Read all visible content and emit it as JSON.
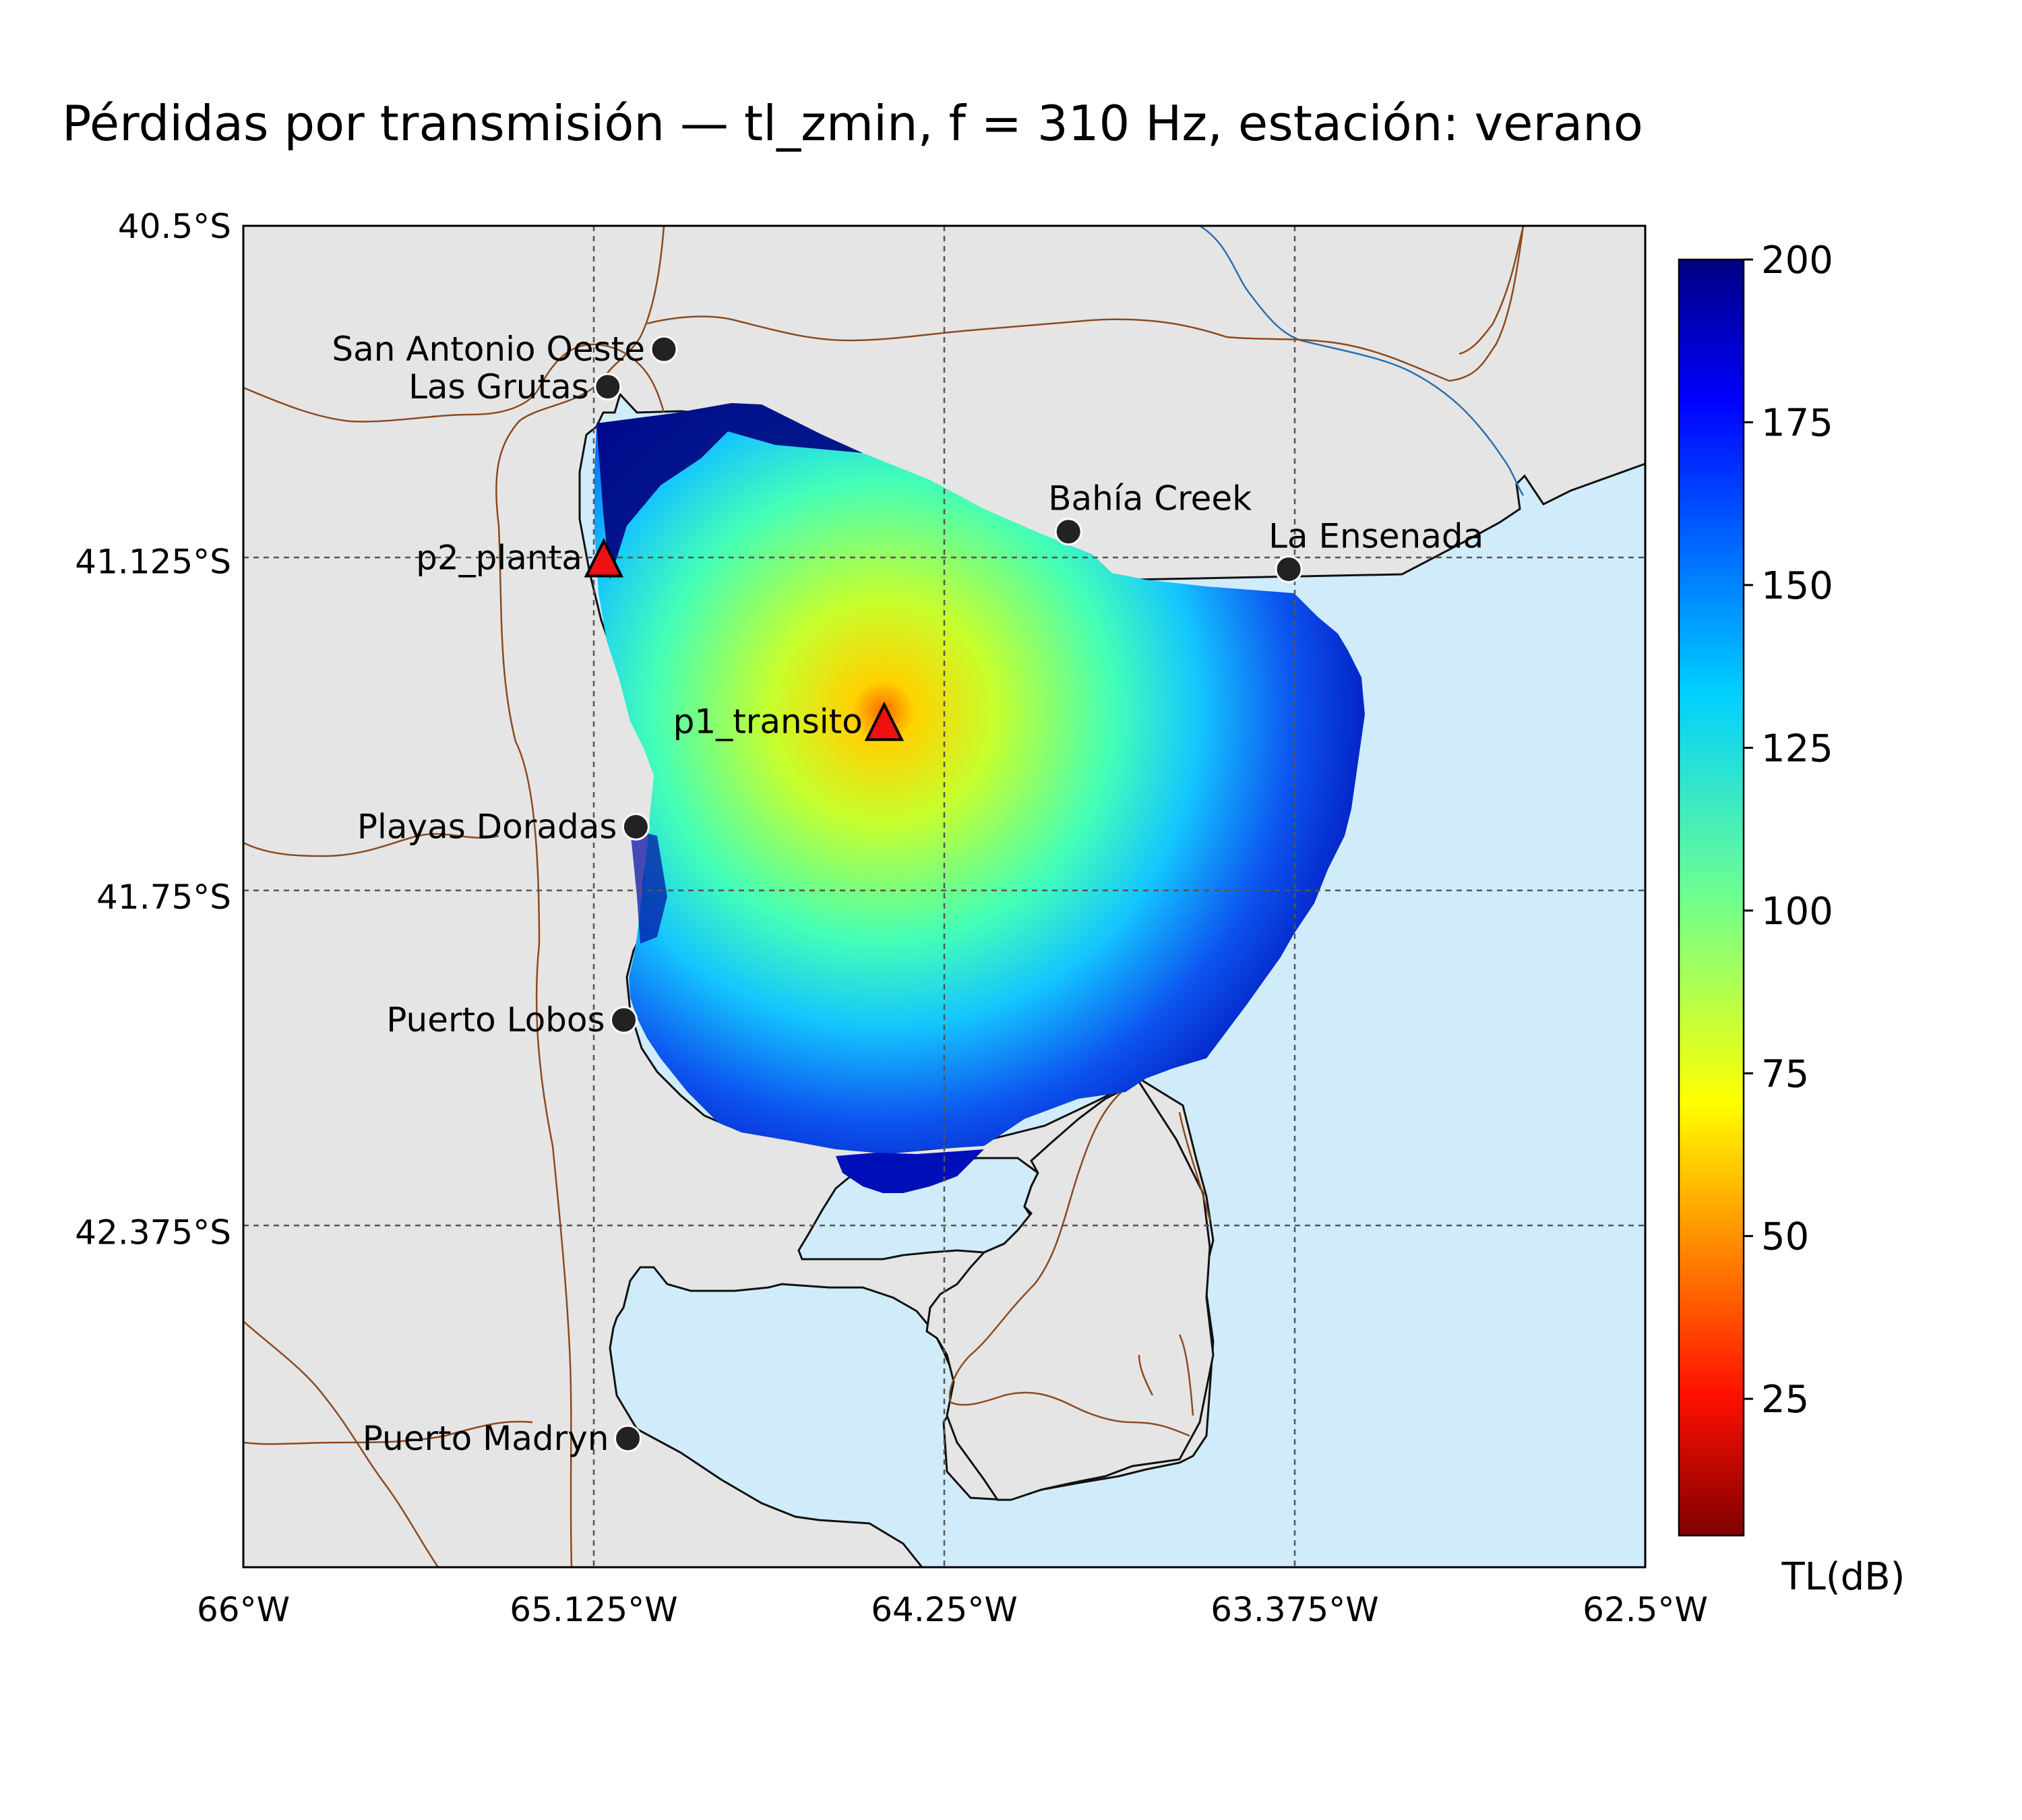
{
  "title": "Pérdidas por transmisión — tl_zmin, f = 310 Hz, estación: verano",
  "map": {
    "lon_ticks": [
      "66°W",
      "65.125°W",
      "64.25°W",
      "63.375°W",
      "62.5°W"
    ],
    "lat_ticks": [
      "40.5°S",
      "41.125°S",
      "41.75°S",
      "42.375°S"
    ],
    "lon_range": [
      -66.0,
      -62.5
    ],
    "lat_range": [
      -43.0,
      -40.5
    ],
    "gridlines": true,
    "colors": {
      "land": "#e5e5e5",
      "ocean": "#d0ecfb",
      "coastline": "#111111",
      "boundaries": "#8b4a1f",
      "rivers": "#2c6fb0"
    }
  },
  "places": [
    {
      "name": "San Antonio Oeste",
      "lon": -64.95,
      "lat": -40.73
    },
    {
      "name": "Las Grutas",
      "lon": -65.09,
      "lat": -40.8
    },
    {
      "name": "Bahía Creek",
      "lon": -63.94,
      "lat": -41.07
    },
    {
      "name": "La Ensenada",
      "lon": -63.39,
      "lat": -41.14
    },
    {
      "name": "Playas Doradas",
      "lon": -65.02,
      "lat": -41.62
    },
    {
      "name": "Puerto Lobos",
      "lon": -65.05,
      "lat": -41.98
    },
    {
      "name": "Puerto Madryn",
      "lon": -65.04,
      "lat": -42.76
    }
  ],
  "sources": [
    {
      "name": "p1_transito",
      "lon": -64.4,
      "lat": -41.43
    },
    {
      "name": "p2_planta",
      "lon": -65.1,
      "lat": -41.125
    }
  ],
  "colorbar": {
    "label": "TL(dB)",
    "ticks": [
      "200",
      "175",
      "150",
      "125",
      "100",
      "75",
      "50",
      "25"
    ],
    "min": 4,
    "max": 200,
    "colormap": "jet_r"
  }
}
